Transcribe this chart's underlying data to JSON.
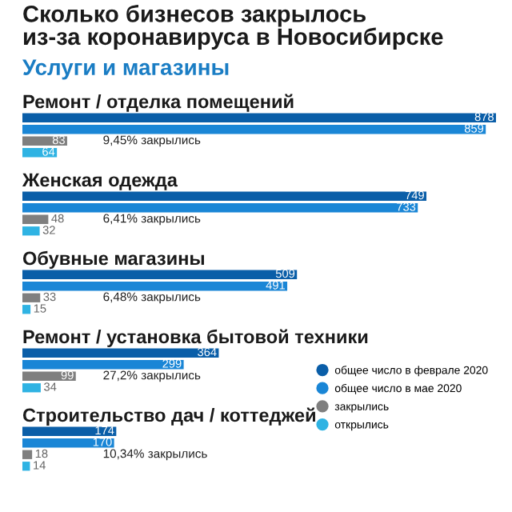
{
  "chart_data": [
    {
      "type": "other",
      "title": "Сколько бизнесов закрылось\nиз-за коронавируса в Новосибирске",
      "subtitle": "Услуги и магазины"
    },
    {
      "type": "bar",
      "orientation": "horizontal",
      "title": "Ремонт / отделка помещений",
      "categories": [
        null
      ],
      "data_labels": true,
      "annotations": [
        "9,45% закрылись"
      ],
      "series": [
        {
          "color": "#0a5ea8",
          "values": [
            878
          ]
        },
        {
          "color": "#1a86d6",
          "values": [
            859
          ]
        },
        {
          "color": "#7f7f7f",
          "values": [
            83
          ]
        },
        {
          "color": "#2fb3e3",
          "values": [
            64
          ]
        }
      ]
    },
    {
      "type": "bar",
      "orientation": "horizontal",
      "title": "Женская одежда",
      "categories": [
        null
      ],
      "data_labels": true,
      "annotations": [
        "6,41% закрылись"
      ],
      "series": [
        {
          "color": "#0a5ea8",
          "values": [
            749
          ]
        },
        {
          "color": "#1a86d6",
          "values": [
            733
          ]
        },
        {
          "color": "#7f7f7f",
          "values": [
            48
          ]
        },
        {
          "color": "#2fb3e3",
          "values": [
            32
          ]
        }
      ]
    },
    {
      "type": "bar",
      "orientation": "horizontal",
      "title": "Обувные магазины",
      "categories": [
        null
      ],
      "data_labels": true,
      "annotations": [
        "6,48% закрылись"
      ],
      "series": [
        {
          "color": "#0a5ea8",
          "values": [
            509
          ]
        },
        {
          "color": "#1a86d6",
          "values": [
            491
          ]
        },
        {
          "color": "#7f7f7f",
          "values": [
            33
          ]
        },
        {
          "color": "#2fb3e3",
          "values": [
            15
          ]
        }
      ]
    },
    {
      "type": "bar",
      "orientation": "horizontal",
      "title": "Ремонт / установка бытовой техники",
      "categories": [
        null
      ],
      "data_labels": true,
      "annotations": [
        "27,2% закрылись"
      ],
      "legend": "right",
      "series": [
        {
          "name": "общее число в феврале 2020",
          "color": "#0a5ea8",
          "values": [
            364
          ]
        },
        {
          "name": "общее число в мае 2020",
          "color": "#1a86d6",
          "values": [
            299
          ]
        },
        {
          "name": "закрылись",
          "color": "#7f7f7f",
          "values": [
            99
          ]
        },
        {
          "name": "открылись",
          "color": "#2fb3e3",
          "values": [
            34
          ]
        }
      ]
    },
    {
      "type": "bar",
      "orientation": "horizontal",
      "title": "Строительство дач / коттеджей",
      "categories": [
        null
      ],
      "data_labels": true,
      "annotations": [
        "10,34% закрылись"
      ],
      "series": [
        {
          "color": "#0a5ea8",
          "values": [
            174
          ]
        },
        {
          "color": "#1a86d6",
          "values": [
            170
          ]
        },
        {
          "color": "#7f7f7f",
          "values": [
            18
          ]
        },
        {
          "color": "#2fb3e3",
          "values": [
            14
          ]
        }
      ]
    }
  ]
}
